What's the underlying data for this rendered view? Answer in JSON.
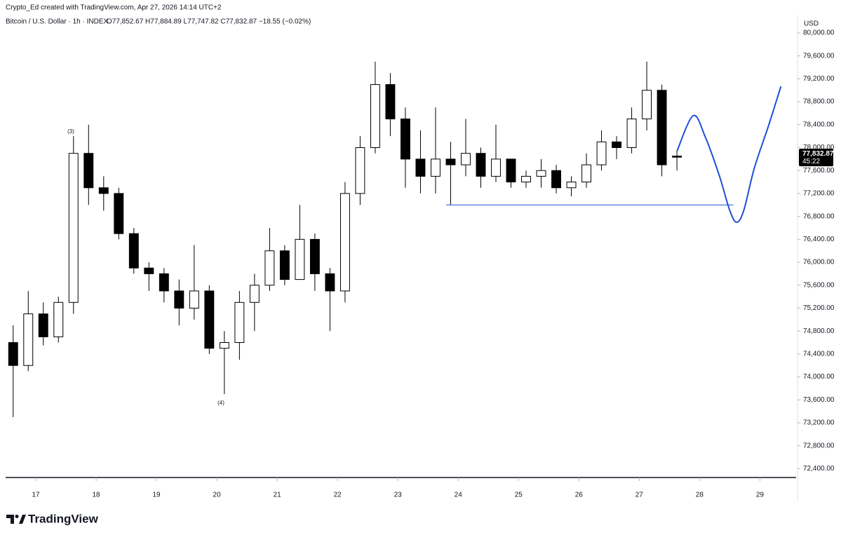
{
  "header": {
    "credit": "Crypto_Ed created with TradingView.com, Apr 27, 2026 14:14 UTC+2",
    "brand": "TradingView"
  },
  "chart_data": {
    "type": "candlestick",
    "title": "Bitcoin / U.S. Dollar · 1h · INDEX",
    "ohlc_text": "O77,852.67 H77,884.89 L77,747.82 C77,832.87 −18.55 (−0.02%)",
    "currency": "USD",
    "x": [
      16.5,
      16.75,
      17,
      17.25,
      17.5,
      17.75,
      18,
      18.25,
      18.5,
      18.75,
      19,
      19.25,
      19.5,
      19.75,
      20,
      20.25,
      20.5,
      20.75,
      21,
      21.25,
      21.5,
      21.75,
      22,
      22.25,
      22.5,
      22.75,
      23,
      23.25,
      23.5,
      23.75,
      24,
      24.25,
      24.5,
      24.75,
      25,
      25.25,
      25.5,
      25.75,
      26,
      26.25,
      26.5,
      26.75,
      27,
      27.25,
      27.5
    ],
    "open": [
      74600,
      74200,
      75100,
      74700,
      75300,
      77900,
      77300,
      77200,
      76500,
      75900,
      75800,
      75500,
      75200,
      75500,
      74500,
      74600,
      75300,
      75600,
      76200,
      75700,
      76400,
      75800,
      75500,
      77200,
      78000,
      79100,
      78500,
      77800,
      77500,
      77800,
      77700,
      77900,
      77500,
      77800,
      77400,
      77500,
      77600,
      77300,
      77400,
      77700,
      78100,
      78000,
      78500,
      79000,
      77852.67
    ],
    "high": [
      74900,
      75500,
      75300,
      75400,
      78200,
      78400,
      77500,
      77300,
      76600,
      76000,
      75900,
      75700,
      76300,
      75600,
      74800,
      75500,
      75800,
      76600,
      76300,
      77000,
      76500,
      75900,
      77400,
      78200,
      79500,
      79300,
      78700,
      78300,
      78700,
      78100,
      78500,
      78000,
      78400,
      77800,
      77600,
      77800,
      77700,
      77500,
      77900,
      78300,
      78200,
      78700,
      79500,
      79100,
      77950
    ],
    "low": [
      73300,
      74100,
      74550,
      74600,
      75100,
      77000,
      76900,
      76400,
      75800,
      75500,
      75300,
      74900,
      75000,
      74400,
      73700,
      74300,
      74800,
      75500,
      75600,
      75700,
      75500,
      74800,
      75300,
      77000,
      77900,
      78200,
      77300,
      77200,
      77200,
      77000,
      77500,
      77300,
      77400,
      77300,
      77300,
      77300,
      77200,
      77150,
      77300,
      77600,
      77800,
      77900,
      78300,
      77500,
      77600
    ],
    "close": [
      74200,
      75100,
      74700,
      75300,
      77900,
      77300,
      77200,
      76500,
      75900,
      75800,
      75500,
      75200,
      75500,
      74500,
      74600,
      75300,
      75600,
      76200,
      75700,
      76400,
      75800,
      75500,
      77200,
      78000,
      79100,
      78500,
      77800,
      77500,
      77800,
      77700,
      77900,
      77500,
      77800,
      77400,
      77500,
      77600,
      77300,
      77400,
      77700,
      78100,
      78000,
      78500,
      79000,
      77700,
      77832.87
    ],
    "up_color": "#ffffff",
    "down_color": "#000000",
    "wick_color": "#000000",
    "candle_hours": 6,
    "xlim": [
      16.5,
      29.6
    ],
    "xticks": [
      17,
      18,
      19,
      20,
      21,
      22,
      23,
      24,
      25,
      26,
      27,
      28,
      29
    ],
    "ylim": [
      72246,
      80061
    ],
    "yticks": [
      {
        "value": 72400,
        "label": "72,400.00"
      },
      {
        "value": 72800,
        "label": "72,800.00"
      },
      {
        "value": 73200,
        "label": "73,200.00"
      },
      {
        "value": 73600,
        "label": "73,600.00"
      },
      {
        "value": 74000,
        "label": "74,000.00"
      },
      {
        "value": 74400,
        "label": "74,400.00"
      },
      {
        "value": 74800,
        "label": "74,800.00"
      },
      {
        "value": 75200,
        "label": "75,200.00"
      },
      {
        "value": 75600,
        "label": "75,600.00"
      },
      {
        "value": 76000,
        "label": "76,000.00"
      },
      {
        "value": 76400,
        "label": "76,400.00"
      },
      {
        "value": 76800,
        "label": "76,800.00"
      },
      {
        "value": 77200,
        "label": "77,200.00"
      },
      {
        "value": 77600,
        "label": "77,600.00"
      },
      {
        "value": 78000,
        "label": "78,000.00"
      },
      {
        "value": 78400,
        "label": "78,400.00"
      },
      {
        "value": 78800,
        "label": "78,800.00"
      },
      {
        "value": 79200,
        "label": "79,200.00"
      },
      {
        "value": 79600,
        "label": "79,600.00"
      },
      {
        "value": 80000,
        "label": "80,000.00"
      }
    ],
    "last_price": {
      "value": 77832.87,
      "label": "77,832.87"
    },
    "countdown": "45:22",
    "projection": {
      "color": "#1f4fd8",
      "x": [
        27.628,
        27.895,
        28.093,
        28.326,
        28.5,
        28.616,
        28.733,
        28.907,
        29.14,
        29.349
      ],
      "values": [
        77945,
        78557,
        78190,
        77517,
        76906,
        76698,
        76906,
        77640,
        78373,
        79070
      ]
    },
    "level": {
      "color": "#1f4fd8",
      "value": 77000,
      "x": [
        23.8,
        28.56
      ]
    },
    "annotations": [
      "(3)",
      "(4)"
    ]
  }
}
